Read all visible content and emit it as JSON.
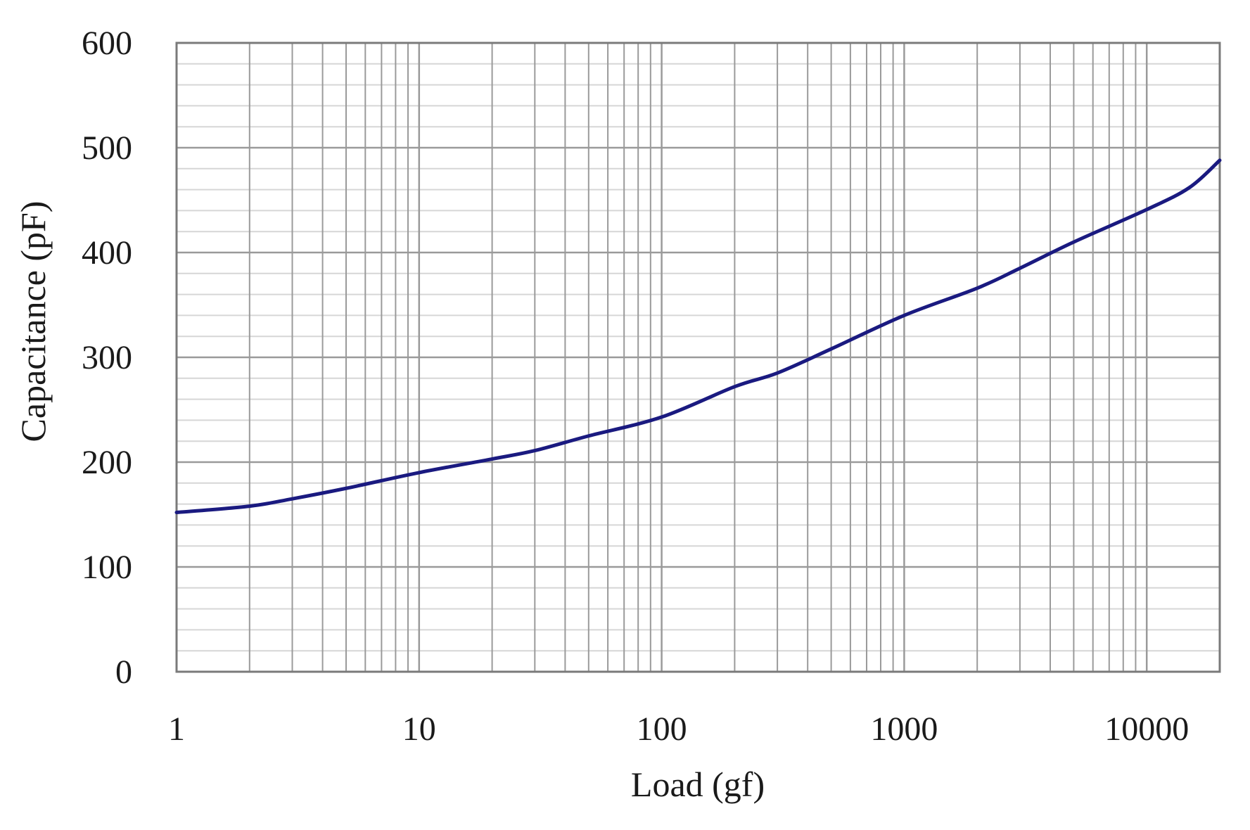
{
  "chart_data": {
    "type": "line",
    "title": "",
    "xlabel": "Load (gf)",
    "ylabel": "Capacitance (pF)",
    "xscale": "log",
    "xlim": [
      1,
      20000
    ],
    "ylim": [
      0,
      600
    ],
    "x_ticks": [
      1,
      10,
      100,
      1000,
      10000
    ],
    "x_tick_labels": [
      "1",
      "10",
      "100",
      "1000",
      "10000"
    ],
    "y_ticks": [
      0,
      100,
      200,
      300,
      400,
      500,
      600
    ],
    "y_tick_labels": [
      "0",
      "100",
      "200",
      "300",
      "400",
      "500",
      "600"
    ],
    "grid": true,
    "minor_grid": true,
    "legend": null,
    "series": [
      {
        "name": "Capacitance",
        "color": "#1a1a80",
        "x": [
          1,
          2,
          3,
          5,
          10,
          20,
          30,
          50,
          100,
          200,
          300,
          500,
          1000,
          2000,
          3000,
          5000,
          10000,
          15000,
          20000
        ],
        "y": [
          152,
          158,
          165,
          175,
          190,
          203,
          211,
          225,
          243,
          272,
          285,
          308,
          340,
          366,
          385,
          410,
          441,
          462,
          488
        ]
      }
    ]
  },
  "colors": {
    "grid_major": "#9a9a9a",
    "grid_minor": "#d6d6d6",
    "frame": "#7a7a7a",
    "line": "#1a1a80",
    "text": "#1a1a1a"
  }
}
